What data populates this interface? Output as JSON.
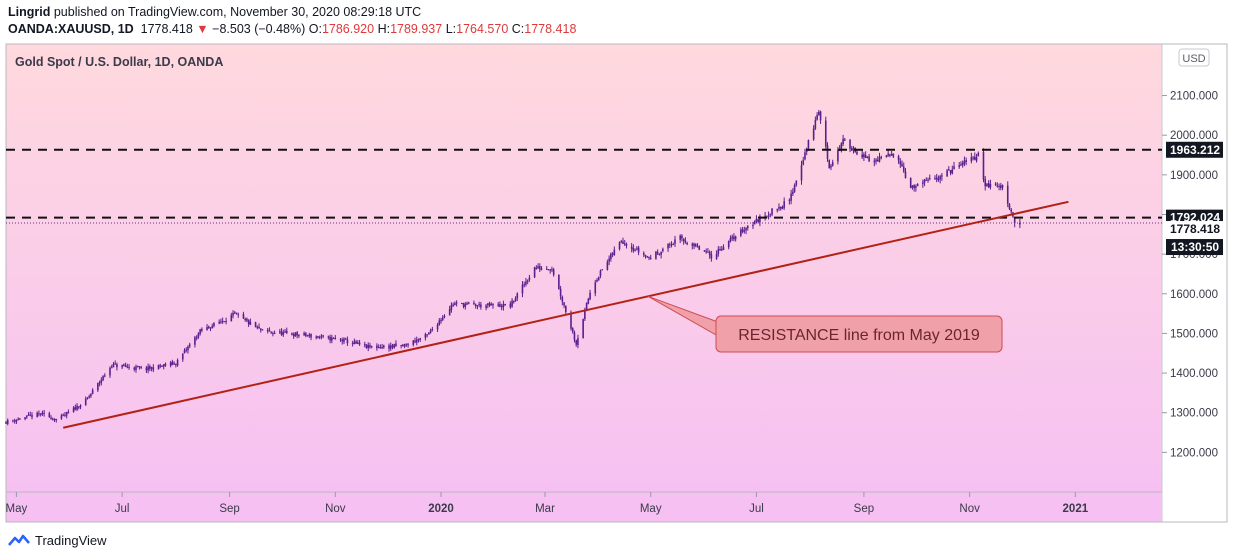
{
  "header": {
    "author": "Lingrid",
    "published": "published on TradingView.com, November 30, 2020 08:29:18 UTC",
    "symbol": "OANDA:XAUUSD, 1D",
    "last": "1778.418",
    "change": "−8.503 (−0.48%)",
    "o_label": "O:",
    "o_value": "1786.920",
    "h_label": "H:",
    "h_value": "1789.937",
    "l_label": "L:",
    "l_value": "1764.570",
    "c_label": "C:",
    "c_value": "1778.418"
  },
  "chart_title": "Gold Spot / U.S. Dollar, 1D, OANDA",
  "currency": "USD",
  "annotation": "RESISTANCE line from May 2019",
  "price_badges": {
    "upper": "1963.212",
    "lower": "1792.024",
    "last": "1778.418",
    "countdown": "13:30:50"
  },
  "footer": {
    "brand": "TradingView"
  },
  "colors": {
    "bg_top": "#ffd9de",
    "bg_bottom": "#f6c1f2",
    "candle": "#5a1f8c",
    "trendline": "#b22214",
    "annotation_fill": "#f0a0a8",
    "annotation_border": "#cf4b53",
    "badge": "#131722",
    "down": "#e0393b"
  },
  "chart_data": {
    "type": "candlestick",
    "title": "Gold Spot / U.S. Dollar, 1D, OANDA",
    "y_unit": "USD",
    "y_ticks": [
      1200,
      1300,
      1400,
      1500,
      1600,
      1700,
      1800,
      1900,
      2000,
      2100
    ],
    "y_tick_labels": [
      "1200.000",
      "1300.000",
      "1400.000",
      "1500.000",
      "1600.000",
      "1700.000",
      "1800.000",
      "1900.000",
      "2000.000",
      "2100.000"
    ],
    "ylim": [
      1100,
      2230
    ],
    "x_ticks": [
      {
        "label": "May",
        "date": "2019-05-01",
        "bold": false
      },
      {
        "label": "Jul",
        "date": "2019-07-01",
        "bold": false
      },
      {
        "label": "Sep",
        "date": "2019-09-01",
        "bold": false
      },
      {
        "label": "Nov",
        "date": "2019-11-01",
        "bold": false
      },
      {
        "label": "2020",
        "date": "2020-01-01",
        "bold": true
      },
      {
        "label": "Mar",
        "date": "2020-03-01",
        "bold": false
      },
      {
        "label": "May",
        "date": "2020-05-01",
        "bold": false
      },
      {
        "label": "Jul",
        "date": "2020-07-01",
        "bold": false
      },
      {
        "label": "Sep",
        "date": "2020-09-01",
        "bold": false
      },
      {
        "label": "Nov",
        "date": "2020-11-01",
        "bold": false
      },
      {
        "label": "2021",
        "date": "2021-01-01",
        "bold": true
      }
    ],
    "xlim": [
      "2019-04-25",
      "2021-02-20"
    ],
    "price_path": [
      [
        "2019-04-25",
        1277
      ],
      [
        "2019-05-15",
        1297
      ],
      [
        "2019-05-25",
        1282
      ],
      [
        "2019-06-10",
        1330
      ],
      [
        "2019-06-25",
        1420
      ],
      [
        "2019-07-15",
        1410
      ],
      [
        "2019-08-01",
        1425
      ],
      [
        "2019-08-15",
        1505
      ],
      [
        "2019-09-04",
        1548
      ],
      [
        "2019-09-20",
        1505
      ],
      [
        "2019-10-15",
        1495
      ],
      [
        "2019-11-05",
        1483
      ],
      [
        "2019-11-20",
        1465
      ],
      [
        "2019-12-10",
        1468
      ],
      [
        "2019-12-24",
        1495
      ],
      [
        "2020-01-08",
        1575
      ],
      [
        "2020-01-25",
        1570
      ],
      [
        "2020-02-10",
        1570
      ],
      [
        "2020-02-24",
        1665
      ],
      [
        "2020-03-05",
        1665
      ],
      [
        "2020-03-19",
        1475
      ],
      [
        "2020-03-28",
        1620
      ],
      [
        "2020-04-14",
        1735
      ],
      [
        "2020-04-30",
        1690
      ],
      [
        "2020-05-18",
        1740
      ],
      [
        "2020-06-05",
        1695
      ],
      [
        "2020-06-25",
        1768
      ],
      [
        "2020-07-20",
        1835
      ],
      [
        "2020-08-06",
        2062
      ],
      [
        "2020-08-12",
        1920
      ],
      [
        "2020-08-20",
        1985
      ],
      [
        "2020-09-05",
        1932
      ],
      [
        "2020-09-20",
        1955
      ],
      [
        "2020-09-28",
        1865
      ],
      [
        "2020-10-20",
        1908
      ],
      [
        "2020-11-06",
        1950
      ],
      [
        "2020-11-10",
        1875
      ],
      [
        "2020-11-20",
        1870
      ],
      [
        "2020-11-27",
        1782
      ],
      [
        "2020-11-30",
        1778
      ]
    ],
    "horizontal_levels": [
      1963.212,
      1792.024
    ],
    "trendline": {
      "start": [
        "2019-05-28",
        1262
      ],
      "end": [
        "2020-12-28",
        1832
      ]
    },
    "last_price": 1778.418
  }
}
